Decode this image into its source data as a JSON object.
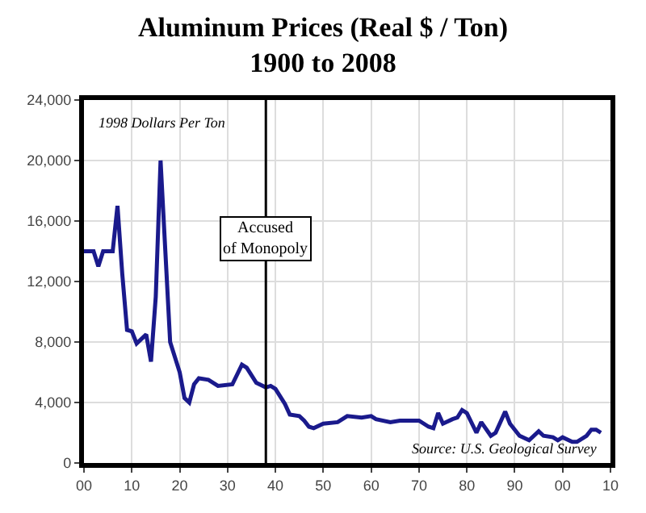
{
  "chart_data": {
    "type": "line",
    "title": "Aluminum Prices (Real $ / Ton)\n1900 to 2008",
    "x": [
      1900,
      1902,
      1903,
      1904,
      1906,
      1907,
      1908,
      1909,
      1910,
      1911,
      1913,
      1914,
      1915,
      1916,
      1917,
      1918,
      1920,
      1921,
      1922,
      1923,
      1924,
      1926,
      1928,
      1931,
      1933,
      1934,
      1936,
      1938,
      1939,
      1940,
      1942,
      1943,
      1945,
      1946,
      1947,
      1948,
      1950,
      1953,
      1955,
      1958,
      1960,
      1961,
      1964,
      1966,
      1970,
      1972,
      1973,
      1974,
      1975,
      1977,
      1978,
      1979,
      1980,
      1982,
      1983,
      1985,
      1986,
      1988,
      1989,
      1991,
      1993,
      1995,
      1996,
      1998,
      1999,
      2000,
      2002,
      2003,
      2005,
      2006,
      2007,
      2008
    ],
    "series": [
      {
        "color": "#1a1a8c",
        "values": [
          14000,
          14000,
          13000,
          14000,
          14000,
          17000,
          12500,
          8800,
          8700,
          7900,
          8500,
          6700,
          11000,
          20000,
          14000,
          8000,
          6000,
          4300,
          4000,
          5200,
          5600,
          5500,
          5100,
          5200,
          6500,
          6300,
          5300,
          5000,
          5100,
          4900,
          3900,
          3200,
          3100,
          2800,
          2400,
          2300,
          2600,
          2700,
          3100,
          3000,
          3100,
          2900,
          2700,
          2800,
          2800,
          2400,
          2300,
          3300,
          2600,
          2900,
          3000,
          3500,
          3300,
          2000,
          2700,
          1800,
          2000,
          3400,
          2600,
          1800,
          1500,
          2100,
          1800,
          1700,
          1500,
          1700,
          1400,
          1400,
          1800,
          2200,
          2200,
          2000
        ]
      }
    ],
    "xlim": [
      1900,
      2010
    ],
    "xticks": [
      {
        "value": 1900,
        "label": "00"
      },
      {
        "value": 1910,
        "label": "10"
      },
      {
        "value": 1920,
        "label": "20"
      },
      {
        "value": 1930,
        "label": "30"
      },
      {
        "value": 1940,
        "label": "40"
      },
      {
        "value": 1950,
        "label": "50"
      },
      {
        "value": 1960,
        "label": "60"
      },
      {
        "value": 1970,
        "label": "70"
      },
      {
        "value": 1980,
        "label": "80"
      },
      {
        "value": 1990,
        "label": "90"
      },
      {
        "value": 2000,
        "label": "00"
      },
      {
        "value": 2010,
        "label": "10"
      }
    ],
    "ylim": [
      0,
      24000
    ],
    "yticks": [
      {
        "value": 0,
        "label": "0"
      },
      {
        "value": 4000,
        "label": "4,000"
      },
      {
        "value": 8000,
        "label": "8,000"
      },
      {
        "value": 12000,
        "label": "12,000"
      },
      {
        "value": 16000,
        "label": "16,000"
      },
      {
        "value": 20000,
        "label": "20,000"
      },
      {
        "value": 24000,
        "label": "24,000"
      }
    ],
    "ref_lines": [
      {
        "axis": "x",
        "value": 1938,
        "label": "Accused\nof Monopoly",
        "color": "#000000"
      }
    ],
    "annotations": [
      "1998 Dollars Per Ton",
      "Source: U.S. Geological Survey"
    ],
    "grid": true,
    "line_style": "solid",
    "marker": "none"
  }
}
